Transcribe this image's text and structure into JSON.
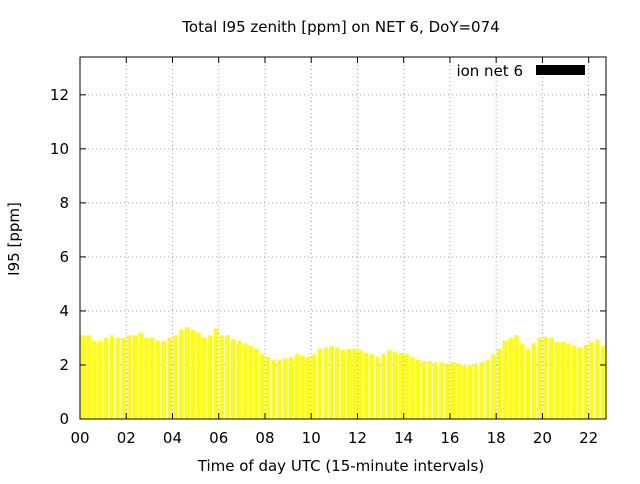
{
  "chart_data": {
    "type": "bar",
    "title": "Total I95 zenith [ppm] on NET 6, DoY=074",
    "xlabel": "Time of day UTC (15-minute intervals)",
    "ylabel": "I95 [ppm]",
    "xlim": [
      0,
      22.75
    ],
    "ylim": [
      0,
      13.4
    ],
    "x_ticks": [
      "00",
      "02",
      "04",
      "06",
      "08",
      "10",
      "12",
      "14",
      "16",
      "18",
      "20",
      "22"
    ],
    "y_ticks": [
      "0",
      "2",
      "4",
      "6",
      "8",
      "10",
      "12"
    ],
    "grid": true,
    "legend_position": "top-right",
    "bar_color": "#ffff00",
    "legend_color": "#000000",
    "series": [
      {
        "name": "ion net 6",
        "interval_hours": 0.25,
        "values": [
          3.1,
          3.1,
          2.9,
          2.9,
          3.0,
          3.1,
          3.0,
          3.0,
          3.1,
          3.1,
          3.2,
          3.0,
          3.0,
          2.9,
          2.9,
          3.0,
          3.1,
          3.3,
          3.4,
          3.3,
          3.2,
          3.0,
          3.1,
          3.35,
          3.1,
          3.1,
          2.95,
          2.9,
          2.8,
          2.7,
          2.6,
          2.4,
          2.3,
          2.2,
          2.2,
          2.25,
          2.3,
          2.4,
          2.35,
          2.3,
          2.4,
          2.6,
          2.65,
          2.7,
          2.65,
          2.55,
          2.6,
          2.6,
          2.55,
          2.45,
          2.4,
          2.3,
          2.4,
          2.55,
          2.5,
          2.45,
          2.4,
          2.3,
          2.2,
          2.15,
          2.15,
          2.1,
          2.1,
          2.05,
          2.1,
          2.05,
          2.0,
          2.0,
          2.05,
          2.1,
          2.2,
          2.4,
          2.6,
          2.9,
          3.0,
          3.1,
          2.8,
          2.6,
          2.8,
          3.0,
          3.05,
          3.0,
          2.85,
          2.85,
          2.8,
          2.7,
          2.65,
          2.75,
          2.85,
          2.95,
          2.7
        ]
      }
    ]
  }
}
